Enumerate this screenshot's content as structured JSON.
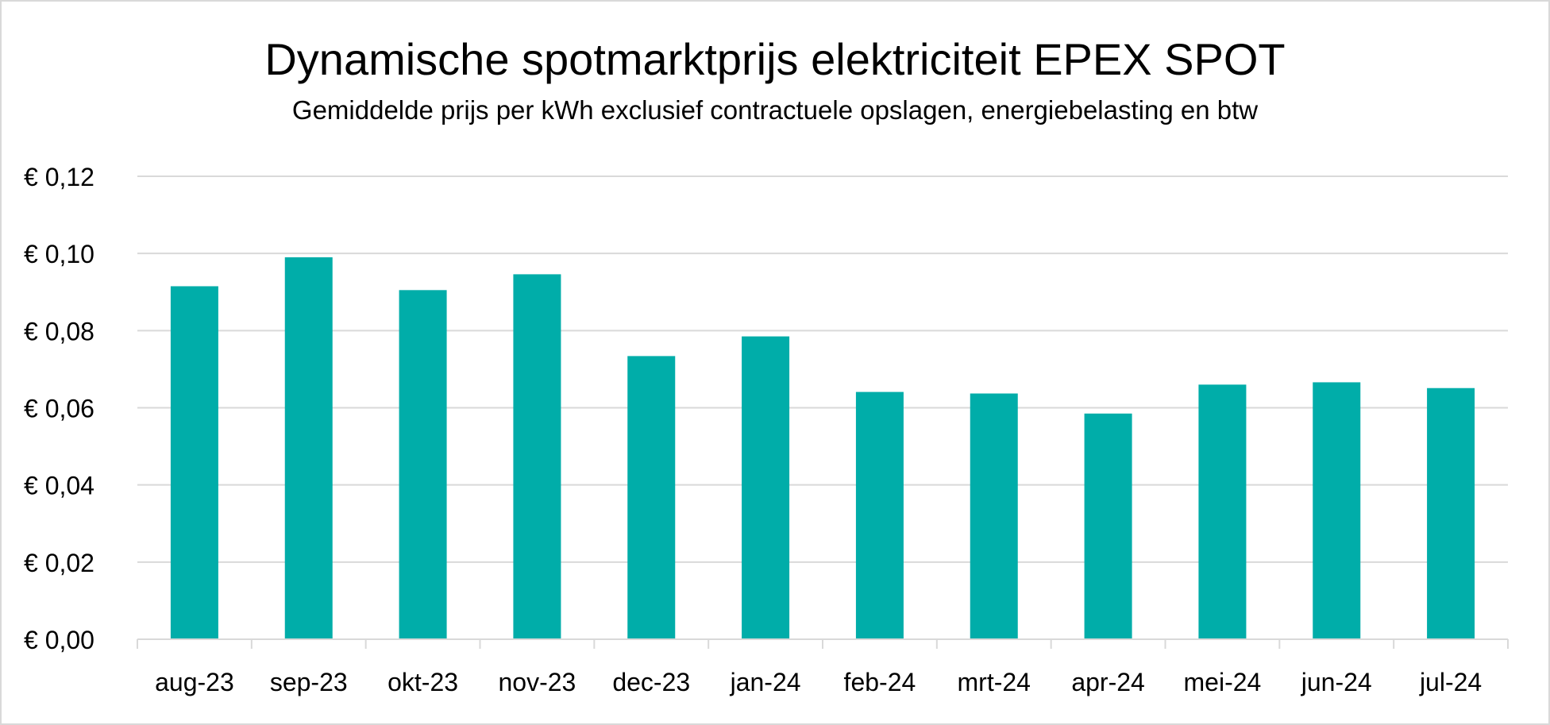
{
  "chart_data": {
    "type": "bar",
    "title": "Dynamische spotmarktprijs elektriciteit EPEX SPOT",
    "subtitle": "Gemiddelde prijs per kWh exclusief contractuele opslagen, energiebelasting en btw",
    "xlabel": "",
    "ylabel": "",
    "categories": [
      "aug-23",
      "sep-23",
      "okt-23",
      "nov-23",
      "dec-23",
      "jan-24",
      "feb-24",
      "mrt-24",
      "apr-24",
      "mei-24",
      "jun-24",
      "jul-24"
    ],
    "values": [
      0.0915,
      0.099,
      0.0905,
      0.0946,
      0.0734,
      0.0785,
      0.0641,
      0.0637,
      0.0585,
      0.066,
      0.0666,
      0.0651
    ],
    "ylim": [
      0,
      0.12
    ],
    "yticks": [
      0,
      0.02,
      0.04,
      0.06,
      0.08,
      0.1,
      0.12
    ],
    "ytick_labels": [
      "€ 0,00",
      "€ 0,02",
      "€ 0,04",
      "€ 0,06",
      "€ 0,08",
      "€ 0,10",
      "€ 0,12"
    ],
    "grid": true,
    "legend": "none",
    "bar_color": "#00ADA9",
    "grid_color": "#D9D9D9"
  }
}
